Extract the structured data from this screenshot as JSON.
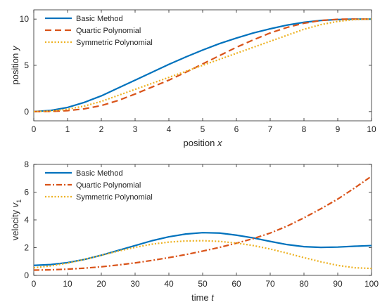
{
  "chart_data": [
    {
      "type": "line",
      "xlabel": "position x",
      "xlabel_parts": [
        "position ",
        "x"
      ],
      "ylabel": "position y",
      "ylabel_parts": [
        "position ",
        "y"
      ],
      "xlim": [
        0,
        10
      ],
      "ylim": [
        -1,
        11
      ],
      "xticks": [
        0,
        1,
        2,
        3,
        4,
        5,
        6,
        7,
        8,
        9,
        10
      ],
      "yticks": [
        0,
        5,
        10
      ],
      "grid": false,
      "legend_position": "top-left",
      "series": [
        {
          "name": "Basic Method",
          "color": "#0072BD",
          "style": "solid",
          "x": [
            0,
            0.5,
            1,
            1.5,
            2,
            2.5,
            3,
            3.5,
            4,
            4.5,
            5,
            5.5,
            6,
            6.5,
            7,
            7.5,
            8,
            8.5,
            9,
            9.5,
            10
          ],
          "y": [
            0,
            0.12,
            0.45,
            1.0,
            1.7,
            2.55,
            3.4,
            4.25,
            5.1,
            5.9,
            6.65,
            7.35,
            7.95,
            8.5,
            8.95,
            9.35,
            9.65,
            9.85,
            9.95,
            10.0,
            10.0
          ]
        },
        {
          "name": "Quartic Polynomial",
          "color": "#D95319",
          "style": "dashed",
          "x": [
            0,
            0.5,
            1,
            1.5,
            2,
            2.5,
            3,
            3.5,
            4,
            4.5,
            5,
            5.5,
            6,
            6.5,
            7,
            7.5,
            8,
            8.5,
            9,
            9.5,
            10
          ],
          "y": [
            0,
            0.02,
            0.1,
            0.3,
            0.65,
            1.2,
            1.9,
            2.65,
            3.4,
            4.25,
            5.15,
            6.05,
            6.95,
            7.75,
            8.5,
            9.1,
            9.55,
            9.85,
            9.98,
            10.0,
            10.0
          ]
        },
        {
          "name": "Symmetric Polynomial",
          "color": "#EDB120",
          "style": "dotted",
          "x": [
            0,
            0.5,
            1,
            1.5,
            2,
            2.5,
            3,
            3.5,
            4,
            4.5,
            5,
            5.5,
            6,
            6.5,
            7,
            7.5,
            8,
            8.5,
            9,
            9.5,
            10
          ],
          "y": [
            0,
            0.05,
            0.25,
            0.6,
            1.1,
            1.75,
            2.4,
            3.05,
            3.7,
            4.35,
            5.0,
            5.65,
            6.3,
            6.95,
            7.6,
            8.25,
            8.9,
            9.4,
            9.75,
            9.95,
            10.0
          ]
        }
      ]
    },
    {
      "type": "line",
      "xlabel": "time t",
      "xlabel_parts": [
        "time ",
        "t"
      ],
      "ylabel": "velocity v1",
      "ylabel_parts": [
        "velocity ",
        "v",
        "1"
      ],
      "xlim": [
        0,
        100
      ],
      "ylim": [
        0,
        8
      ],
      "xticks": [
        0,
        10,
        20,
        30,
        40,
        50,
        60,
        70,
        80,
        90,
        100
      ],
      "yticks": [
        0,
        2,
        4,
        6,
        8
      ],
      "grid": false,
      "legend_position": "top-left",
      "series": [
        {
          "name": "Basic Method",
          "color": "#0072BD",
          "style": "solid",
          "x": [
            0,
            5,
            10,
            15,
            20,
            25,
            30,
            35,
            40,
            45,
            50,
            55,
            60,
            65,
            70,
            75,
            80,
            85,
            90,
            95,
            100
          ],
          "y": [
            0.72,
            0.78,
            0.92,
            1.15,
            1.45,
            1.8,
            2.15,
            2.5,
            2.78,
            2.98,
            3.08,
            3.05,
            2.9,
            2.7,
            2.45,
            2.22,
            2.07,
            2.02,
            2.04,
            2.1,
            2.15
          ]
        },
        {
          "name": "Quartic Polynomial",
          "color": "#D95319",
          "style": "dashdot",
          "x": [
            0,
            5,
            10,
            15,
            20,
            25,
            30,
            35,
            40,
            45,
            50,
            55,
            60,
            65,
            70,
            75,
            80,
            85,
            90,
            95,
            100
          ],
          "y": [
            0.38,
            0.4,
            0.45,
            0.52,
            0.62,
            0.75,
            0.9,
            1.08,
            1.28,
            1.5,
            1.75,
            2.02,
            2.32,
            2.65,
            3.05,
            3.55,
            4.15,
            4.8,
            5.5,
            6.3,
            7.15
          ]
        },
        {
          "name": "Symmetric Polynomial",
          "color": "#EDB120",
          "style": "dotted",
          "x": [
            0,
            5,
            10,
            15,
            20,
            25,
            30,
            35,
            40,
            45,
            50,
            55,
            60,
            65,
            70,
            75,
            80,
            85,
            90,
            95,
            100
          ],
          "y": [
            0.55,
            0.68,
            0.88,
            1.15,
            1.45,
            1.75,
            2.02,
            2.25,
            2.4,
            2.48,
            2.5,
            2.45,
            2.33,
            2.15,
            1.9,
            1.6,
            1.28,
            0.98,
            0.72,
            0.55,
            0.5
          ]
        }
      ]
    }
  ]
}
